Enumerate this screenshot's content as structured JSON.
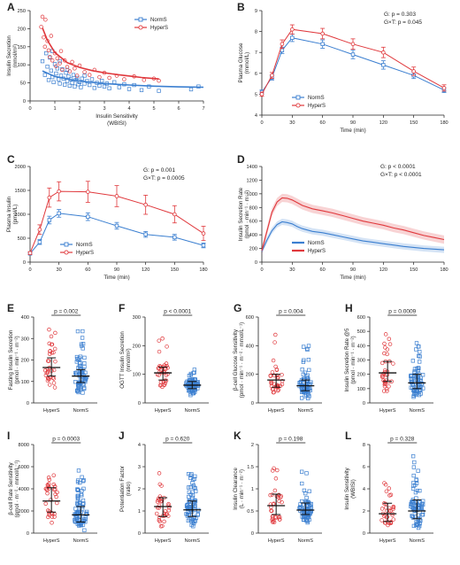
{
  "colors": {
    "normS": "#3b7fd0",
    "hyperS": "#e0383c",
    "axis": "#222222"
  },
  "chart_data": [
    {
      "id": "A",
      "letter": "A",
      "type": "scatter",
      "xlabel": "Insulin Sensitivity",
      "xlabel2": "(WBISI)",
      "ylabel": "Insulin Secretion",
      "ylabel2": "(nmol/m²)",
      "xlim": [
        0,
        7
      ],
      "ylim": [
        0,
        250
      ],
      "xticks": [
        0,
        1,
        2,
        3,
        4,
        5,
        6,
        7
      ],
      "yticks": [
        0,
        50,
        100,
        150,
        200,
        250
      ],
      "legend": "top-right",
      "series": [
        {
          "name": "NormS",
          "points": [
            [
              0.5,
              110
            ],
            [
              0.6,
              72
            ],
            [
              0.7,
              95
            ],
            [
              0.75,
              58
            ],
            [
              0.8,
              120
            ],
            [
              0.85,
              84
            ],
            [
              0.9,
              66
            ],
            [
              0.95,
              52
            ],
            [
              1.0,
              102
            ],
            [
              1.05,
              76
            ],
            [
              1.1,
              90
            ],
            [
              1.15,
              60
            ],
            [
              1.2,
              48
            ],
            [
              1.25,
              70
            ],
            [
              1.3,
              88
            ],
            [
              1.35,
              62
            ],
            [
              1.4,
              45
            ],
            [
              1.45,
              78
            ],
            [
              1.5,
              55
            ],
            [
              1.55,
              68
            ],
            [
              1.6,
              42
            ],
            [
              1.65,
              60
            ],
            [
              1.7,
              50
            ],
            [
              1.75,
              72
            ],
            [
              1.8,
              40
            ],
            [
              1.85,
              58
            ],
            [
              1.9,
              64
            ],
            [
              1.95,
              46
            ],
            [
              2.0,
              52
            ],
            [
              2.05,
              38
            ],
            [
              2.1,
              62
            ],
            [
              2.2,
              48
            ],
            [
              2.3,
              55
            ],
            [
              2.4,
              44
            ],
            [
              2.5,
              60
            ],
            [
              2.6,
              36
            ],
            [
              2.7,
              50
            ],
            [
              2.8,
              42
            ],
            [
              2.9,
              56
            ],
            [
              3.0,
              40
            ],
            [
              3.1,
              48
            ],
            [
              3.2,
              35
            ],
            [
              3.4,
              52
            ],
            [
              3.6,
              38
            ],
            [
              3.8,
              46
            ],
            [
              4.0,
              33
            ],
            [
              4.2,
              44
            ],
            [
              4.5,
              30
            ],
            [
              4.8,
              40
            ],
            [
              5.2,
              28
            ],
            [
              1.2,
              110
            ],
            [
              0.9,
              138
            ],
            [
              1.5,
              86
            ],
            [
              2.2,
              70
            ],
            [
              6.8,
              40
            ],
            [
              6.5,
              32
            ],
            [
              0.65,
              132
            ]
          ],
          "curve": [
            [
              0.5,
              83
            ],
            [
              1,
              68
            ],
            [
              1.5,
              61
            ],
            [
              2,
              55
            ],
            [
              3,
              48
            ],
            [
              4,
              44
            ],
            [
              5,
              41
            ],
            [
              6,
              39
            ],
            [
              7,
              38
            ]
          ]
        },
        {
          "name": "HyperS",
          "points": [
            [
              0.45,
              205
            ],
            [
              0.5,
              233
            ],
            [
              0.55,
              176
            ],
            [
              0.6,
              150
            ],
            [
              0.62,
              225
            ],
            [
              0.7,
              166
            ],
            [
              0.75,
              140
            ],
            [
              0.8,
              122
            ],
            [
              0.85,
              180
            ],
            [
              0.9,
              112
            ],
            [
              1.0,
              132
            ],
            [
              1.05,
              96
            ],
            [
              1.1,
              118
            ],
            [
              1.2,
              104
            ],
            [
              1.25,
              138
            ],
            [
              1.3,
              86
            ],
            [
              1.4,
              112
            ],
            [
              1.5,
              94
            ],
            [
              1.6,
              82
            ],
            [
              1.7,
              108
            ],
            [
              1.8,
              90
            ],
            [
              1.9,
              70
            ],
            [
              2.0,
              98
            ],
            [
              2.2,
              80
            ],
            [
              2.4,
              72
            ],
            [
              2.6,
              86
            ],
            [
              2.8,
              66
            ],
            [
              3.0,
              78
            ],
            [
              3.2,
              64
            ],
            [
              3.5,
              70
            ],
            [
              3.8,
              60
            ],
            [
              4.2,
              68
            ],
            [
              4.6,
              58
            ],
            [
              5.0,
              62
            ],
            [
              5.2,
              56
            ]
          ],
          "curve": [
            [
              0.5,
              202
            ],
            [
              0.7,
              168
            ],
            [
              1,
              134
            ],
            [
              1.5,
              106
            ],
            [
              2,
              93
            ],
            [
              2.5,
              84
            ],
            [
              3,
              78
            ],
            [
              3.5,
              73
            ],
            [
              4,
              69
            ],
            [
              4.5,
              65
            ],
            [
              5,
              62
            ],
            [
              5.2,
              61
            ]
          ]
        }
      ]
    },
    {
      "id": "B",
      "letter": "B",
      "type": "line",
      "xlabel": "Time (min)",
      "ylabel": "Plasma Glucose",
      "ylabel2": "(mmol/L)",
      "xlim": [
        0,
        180
      ],
      "ylim": [
        4,
        9
      ],
      "xticks": [
        0,
        30,
        60,
        90,
        120,
        150,
        180
      ],
      "yticks": [
        4,
        5,
        6,
        7,
        8,
        9
      ],
      "annot1": "G: p = 0.303",
      "annot2": "G×T: p = 0.045",
      "legend": "bottom-left",
      "x": [
        0,
        10,
        20,
        30,
        60,
        90,
        120,
        150,
        180
      ],
      "series": [
        {
          "name": "NormS",
          "values": [
            5.1,
            5.8,
            7.1,
            7.7,
            7.4,
            6.9,
            6.4,
            5.9,
            5.2
          ],
          "err": [
            0.1,
            0.12,
            0.15,
            0.18,
            0.2,
            0.2,
            0.2,
            0.15,
            0.12
          ]
        },
        {
          "name": "HyperS",
          "values": [
            5.0,
            5.9,
            7.4,
            8.1,
            7.9,
            7.4,
            7.0,
            6.1,
            5.3
          ],
          "err": [
            0.1,
            0.14,
            0.2,
            0.22,
            0.25,
            0.25,
            0.25,
            0.2,
            0.15
          ]
        }
      ]
    },
    {
      "id": "C",
      "letter": "C",
      "type": "line",
      "xlabel": "Time (min)",
      "ylabel": "Plasma Insulin",
      "ylabel2": "(pmol/L)",
      "xlim": [
        0,
        180
      ],
      "ylim": [
        0,
        2000
      ],
      "xticks": [
        0,
        30,
        60,
        90,
        120,
        150,
        180
      ],
      "yticks": [
        0,
        500,
        1000,
        1500,
        2000
      ],
      "annot1": "G: p = 0.001",
      "annot2": "G×T: p = 0.0005",
      "legend": "bottom-left",
      "x": [
        0,
        10,
        20,
        30,
        60,
        90,
        120,
        150,
        180
      ],
      "series": [
        {
          "name": "NormS",
          "values": [
            180,
            420,
            880,
            1020,
            950,
            760,
            580,
            520,
            350
          ],
          "err": [
            20,
            50,
            80,
            80,
            80,
            70,
            60,
            60,
            50
          ]
        },
        {
          "name": "HyperS",
          "values": [
            190,
            680,
            1350,
            1480,
            1470,
            1380,
            1200,
            1000,
            600
          ],
          "err": [
            30,
            100,
            200,
            200,
            220,
            220,
            200,
            180,
            150
          ]
        }
      ]
    },
    {
      "id": "D",
      "letter": "D",
      "type": "area",
      "xlabel": "Time (min)",
      "ylabel": "Insulin Secretion Rate",
      "ylabel2": "(pmol · min⁻¹ · m⁻²)",
      "xlim": [
        0,
        180
      ],
      "ylim": [
        0,
        1400
      ],
      "xticks": [
        0,
        30,
        60,
        90,
        120,
        150,
        180
      ],
      "yticks": [
        0,
        200,
        400,
        600,
        800,
        1000,
        1200,
        1400
      ],
      "annot1": "G: p < 0.0001",
      "annot2": "G×T: p < 0.0001",
      "legend": "bottom-left",
      "x": [
        0,
        5,
        10,
        15,
        20,
        25,
        30,
        35,
        40,
        50,
        60,
        70,
        80,
        90,
        100,
        110,
        120,
        130,
        140,
        150,
        160,
        170,
        180
      ],
      "series": [
        {
          "name": "NormS",
          "values": [
            160,
            320,
            460,
            550,
            590,
            580,
            560,
            520,
            490,
            450,
            430,
            400,
            370,
            340,
            310,
            290,
            270,
            250,
            230,
            215,
            200,
            190,
            180
          ],
          "band": 45
        },
        {
          "name": "HyperS",
          "values": [
            170,
            450,
            730,
            880,
            940,
            935,
            910,
            870,
            830,
            780,
            750,
            720,
            680,
            640,
            600,
            570,
            540,
            500,
            470,
            430,
            390,
            360,
            330
          ],
          "band": 60
        }
      ]
    },
    {
      "id": "E",
      "letter": "E",
      "type": "scatter",
      "categories": [
        "HyperS",
        "NormS"
      ],
      "ylabel": "Fasting Insulin Secretion",
      "ylabel2": "(pmol · min⁻¹ · m⁻²)",
      "ylim": [
        0,
        400
      ],
      "yticks": [
        0,
        100,
        200,
        300,
        400
      ],
      "pvalue": "p = 0.002",
      "median": [
        165,
        125
      ],
      "q1": [
        125,
        95
      ],
      "q3": [
        210,
        155
      ],
      "n": [
        34,
        70
      ],
      "spread": [
        [
          60,
          360
        ],
        [
          30,
          340
        ]
      ]
    },
    {
      "id": "F",
      "letter": "F",
      "type": "scatter",
      "categories": [
        "HyperS",
        "NormS"
      ],
      "ylabel": "OGTT Insulin Secretion",
      "ylabel2": "(nmol/m²)",
      "ylim": [
        0,
        300
      ],
      "yticks": [
        0,
        100,
        200,
        300
      ],
      "pvalue": "p < 0.0001",
      "median": [
        105,
        62
      ],
      "q1": [
        80,
        50
      ],
      "q3": [
        125,
        75
      ],
      "n": [
        34,
        70
      ],
      "spread": [
        [
          40,
          240
        ],
        [
          25,
          120
        ]
      ]
    },
    {
      "id": "G",
      "letter": "G",
      "type": "scatter",
      "categories": [
        "HyperS",
        "NormS"
      ],
      "ylabel": "β-cell Glucose Sensitivity",
      "ylabel2": "(pmol · min⁻¹ · m⁻² · mmol/L⁻¹)",
      "ylim": [
        0,
        600
      ],
      "yticks": [
        0,
        200,
        400,
        600
      ],
      "pvalue": "p = 0.004",
      "median": [
        160,
        120
      ],
      "q1": [
        110,
        85
      ],
      "q3": [
        200,
        160
      ],
      "n": [
        34,
        70
      ],
      "spread": [
        [
          50,
          500
        ],
        [
          30,
          400
        ]
      ]
    },
    {
      "id": "H",
      "letter": "H",
      "type": "scatter",
      "categories": [
        "HyperS",
        "NormS"
      ],
      "ylabel": "Insulin Secretion Rate @5",
      "ylabel2": "(pmol · min⁻¹ · m⁻²)",
      "ylim": [
        0,
        600
      ],
      "yticks": [
        0,
        100,
        200,
        300,
        400,
        500,
        600
      ],
      "pvalue": "p = 0.0009",
      "median": [
        210,
        140
      ],
      "q1": [
        150,
        100
      ],
      "q3": [
        290,
        200
      ],
      "n": [
        34,
        70
      ],
      "spread": [
        [
          60,
          490
        ],
        [
          30,
          420
        ]
      ]
    },
    {
      "id": "I",
      "letter": "I",
      "type": "scatter",
      "categories": [
        "HyperS",
        "NormS"
      ],
      "ylabel": "β-cell Rate Sensitivity",
      "ylabel2": "(pmol · m⁻² · mmol/L⁻¹)",
      "ylim": [
        0,
        8000
      ],
      "yticks": [
        0,
        2000,
        4000,
        6000,
        8000
      ],
      "pvalue": "p = 0.0003",
      "median": [
        2900,
        1650
      ],
      "q1": [
        1900,
        1000
      ],
      "q3": [
        4100,
        2400
      ],
      "n": [
        34,
        70
      ],
      "spread": [
        [
          600,
          6200
        ],
        [
          100,
          6300
        ]
      ]
    },
    {
      "id": "J",
      "letter": "J",
      "type": "scatter",
      "categories": [
        "HyperS",
        "NormS"
      ],
      "ylabel": "Potentiation Factor",
      "ylabel2": "(ratio)",
      "ylim": [
        0,
        4
      ],
      "yticks": [
        0,
        1,
        2,
        3,
        4
      ],
      "pvalue": "p = 0.620",
      "median": [
        1.2,
        1.05
      ],
      "q1": [
        0.75,
        0.75
      ],
      "q3": [
        1.6,
        1.45
      ],
      "n": [
        34,
        70
      ],
      "spread": [
        [
          0.2,
          2.8
        ],
        [
          0.2,
          2.8
        ]
      ]
    },
    {
      "id": "K",
      "letter": "K",
      "type": "scatter",
      "categories": [
        "HyperS",
        "NormS"
      ],
      "ylabel": "Insulin Clearance",
      "ylabel2": "(L · min⁻¹ · m⁻²)",
      "ylim": [
        0,
        2
      ],
      "yticks": [
        0,
        0.5,
        1.0,
        1.5,
        2.0
      ],
      "pvalue": "p = 0.198",
      "median": [
        0.62,
        0.52
      ],
      "q1": [
        0.42,
        0.42
      ],
      "q3": [
        0.88,
        0.68
      ],
      "n": [
        34,
        70
      ],
      "spread": [
        [
          0.15,
          1.55
        ],
        [
          0.15,
          1.45
        ]
      ]
    },
    {
      "id": "L",
      "letter": "L",
      "type": "scatter",
      "categories": [
        "HyperS",
        "NormS"
      ],
      "ylabel": "Insulin Sensitivity",
      "ylabel2": "(WBISI)",
      "ylim": [
        0,
        8
      ],
      "yticks": [
        0,
        2,
        4,
        6,
        8
      ],
      "pvalue": "p = 0.328",
      "median": [
        1.75,
        2.0
      ],
      "q1": [
        1.05,
        1.3
      ],
      "q3": [
        2.7,
        3.0
      ],
      "n": [
        34,
        70
      ],
      "spread": [
        [
          0.4,
          5.0
        ],
        [
          0.4,
          7.4
        ]
      ]
    }
  ]
}
